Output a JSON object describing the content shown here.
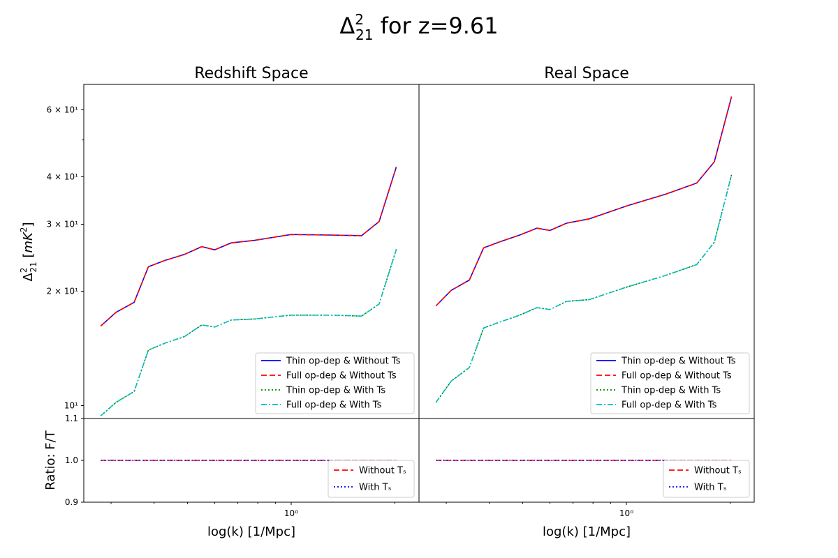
{
  "figure": {
    "title": "Δ²₂₁ for z=9.61",
    "xlabel": "log(k) [1/Mpc]",
    "ylabel_main": "Δ²₂₁ [mK²]",
    "ylabel_ratio": "Ratio: F/T"
  },
  "panels": [
    {
      "title": "Redshift Space"
    },
    {
      "title": "Real Space"
    }
  ],
  "main_y_ticks": [
    {
      "value": 10,
      "label": "10¹"
    },
    {
      "value": 20,
      "label": "2 × 10¹"
    },
    {
      "value": 30,
      "label": "3 × 10¹"
    },
    {
      "value": 40,
      "label": "4 × 10¹"
    },
    {
      "value": 60,
      "label": "6 × 10¹"
    }
  ],
  "ratio_y_ticks": [
    {
      "value": 0.9,
      "label": "0.9"
    },
    {
      "value": 1.0,
      "label": "1.0"
    },
    {
      "value": 1.1,
      "label": "1.1"
    }
  ],
  "x_ticks": [
    {
      "value": 1,
      "label": "10⁰"
    }
  ],
  "legend_main": [
    {
      "label": "Thin op-dep & Without Ts",
      "color": "#0000ff",
      "dash": "solid"
    },
    {
      "label": "Full op-dep & Without Ts",
      "color": "#ff0000",
      "dash": "dashed"
    },
    {
      "label": "Thin op-dep & With Ts",
      "color": "#008000",
      "dash": "dotted"
    },
    {
      "label": "Full op-dep & With Ts",
      "color": "#00bfbf",
      "dash": "dashdot"
    }
  ],
  "legend_ratio": [
    {
      "label": "Without Tₛ",
      "color": "#ff0000",
      "dash": "dashed"
    },
    {
      "label": "With Tₛ",
      "color": "#0000ff",
      "dash": "dotted"
    }
  ],
  "chart_data": [
    {
      "type": "line",
      "title": "Redshift Space",
      "xscale": "log",
      "yscale": "log",
      "xlim": [
        0.25,
        2.35
      ],
      "ylim": [
        9.25,
        70
      ],
      "x": [
        0.28,
        0.31,
        0.35,
        0.385,
        0.43,
        0.49,
        0.55,
        0.6,
        0.67,
        0.78,
        1.0,
        1.3,
        1.6,
        1.8,
        2.02
      ],
      "series": [
        {
          "name": "Thin op-dep & Without Ts",
          "values": [
            16.2,
            17.6,
            18.7,
            23.2,
            24.1,
            25.0,
            26.2,
            25.7,
            26.8,
            27.2,
            28.2,
            28.1,
            28.0,
            30.5,
            42.5
          ]
        },
        {
          "name": "Full op-dep & Without Ts",
          "values": [
            16.2,
            17.6,
            18.7,
            23.2,
            24.1,
            25.0,
            26.2,
            25.7,
            26.8,
            27.2,
            28.2,
            28.1,
            28.0,
            30.5,
            42.5
          ]
        },
        {
          "name": "Thin op-dep & With Ts",
          "values": [
            9.4,
            10.2,
            10.9,
            14.0,
            14.6,
            15.2,
            16.3,
            16.1,
            16.8,
            16.9,
            17.3,
            17.3,
            17.2,
            18.5,
            25.8
          ]
        },
        {
          "name": "Full op-dep & With Ts",
          "values": [
            9.4,
            10.2,
            10.9,
            14.0,
            14.6,
            15.2,
            16.3,
            16.1,
            16.8,
            16.9,
            17.3,
            17.3,
            17.2,
            18.5,
            25.8
          ]
        }
      ]
    },
    {
      "type": "line",
      "title": "Real Space",
      "xscale": "log",
      "yscale": "log",
      "xlim": [
        0.25,
        2.35
      ],
      "ylim": [
        9.25,
        70
      ],
      "x": [
        0.28,
        0.31,
        0.35,
        0.385,
        0.43,
        0.49,
        0.55,
        0.6,
        0.67,
        0.78,
        1.0,
        1.3,
        1.6,
        1.8,
        2.02
      ],
      "series": [
        {
          "name": "Thin op-dep & Without Ts",
          "values": [
            18.3,
            20.1,
            21.4,
            26.0,
            27.0,
            28.1,
            29.3,
            28.9,
            30.2,
            31.0,
            33.5,
            36.0,
            38.5,
            43.8,
            65.0
          ]
        },
        {
          "name": "Full op-dep & Without Ts",
          "values": [
            18.3,
            20.1,
            21.4,
            26.0,
            27.0,
            28.1,
            29.3,
            28.9,
            30.2,
            31.0,
            33.5,
            36.0,
            38.5,
            43.8,
            65.0
          ]
        },
        {
          "name": "Thin op-dep & With Ts",
          "values": [
            10.2,
            11.6,
            12.6,
            16.0,
            16.6,
            17.3,
            18.1,
            17.9,
            18.8,
            19.0,
            20.5,
            22.0,
            23.5,
            26.9,
            40.5
          ]
        },
        {
          "name": "Full op-dep & With Ts",
          "values": [
            10.2,
            11.6,
            12.6,
            16.0,
            16.6,
            17.3,
            18.1,
            17.9,
            18.8,
            19.0,
            20.5,
            22.0,
            23.5,
            26.9,
            40.5
          ]
        }
      ]
    },
    {
      "type": "line",
      "title": "Ratio: F/T (Redshift Space)",
      "xscale": "log",
      "ylim": [
        0.9,
        1.1
      ],
      "x": [
        0.28,
        2.02
      ],
      "series": [
        {
          "name": "Without Tₛ",
          "values": [
            1.0,
            1.0
          ]
        },
        {
          "name": "With Tₛ",
          "values": [
            1.0,
            1.0
          ]
        }
      ]
    },
    {
      "type": "line",
      "title": "Ratio: F/T (Real Space)",
      "xscale": "log",
      "ylim": [
        0.9,
        1.1
      ],
      "x": [
        0.28,
        2.02
      ],
      "series": [
        {
          "name": "Without Tₛ",
          "values": [
            1.0,
            1.0
          ]
        },
        {
          "name": "With Tₛ",
          "values": [
            1.0,
            1.0
          ]
        }
      ]
    }
  ]
}
